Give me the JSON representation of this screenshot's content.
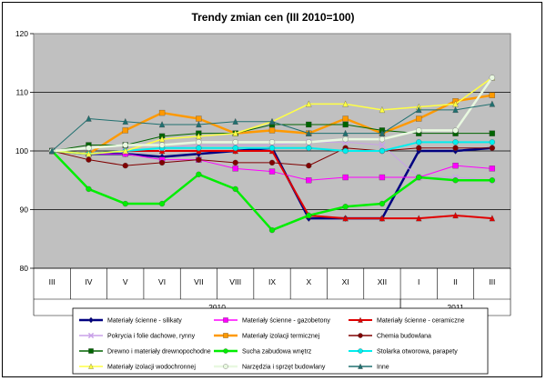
{
  "chart_data": {
    "type": "line",
    "title": "Trendy zmian cen (III 2010=100)",
    "categories": [
      "III",
      "IV",
      "V",
      "VI",
      "VII",
      "VIII",
      "IX",
      "X",
      "XI",
      "XII",
      "I",
      "II",
      "III"
    ],
    "year_groups": [
      {
        "label": "2010",
        "from": 0,
        "to": 9
      },
      {
        "label": "2011",
        "from": 10,
        "to": 12
      }
    ],
    "ylim": [
      80,
      120
    ],
    "yticks": [
      "80",
      "90",
      "100",
      "110",
      "120"
    ],
    "grid": true,
    "legend_position": "bottom",
    "plot_bg": "#c0c0c0",
    "series": [
      {
        "name": "Materiały ścienne - silikaty",
        "color": "#000080",
        "marker": "diamond",
        "width": 2.5,
        "values": [
          100,
          99.5,
          99.5,
          99,
          99.5,
          100,
          100.5,
          88.5,
          88.5,
          88.5,
          100,
          100,
          100.5
        ]
      },
      {
        "name": "Materiały ścienne - gazobetony",
        "color": "#ff00ff",
        "marker": "square",
        "width": 1,
        "values": [
          100,
          99.5,
          99.5,
          98.5,
          98.5,
          97,
          96.5,
          95,
          95.5,
          95.5,
          95.5,
          97.5,
          97
        ]
      },
      {
        "name": "Materiały ścienne - ceramiczne",
        "color": "#e00000",
        "marker": "triangle",
        "width": 2,
        "values": [
          100,
          99.5,
          100,
          100,
          100,
          100,
          100,
          89,
          88.5,
          88.5,
          88.5,
          89,
          88.5
        ]
      },
      {
        "name": "Pokrycia i folie dachowe, rynny",
        "color": "#c8a0e8",
        "marker": "cross",
        "width": 1,
        "values": [
          100,
          99.5,
          100,
          100.5,
          101,
          101,
          101,
          101.5,
          101.5,
          101,
          95.5,
          95.5,
          95
        ]
      },
      {
        "name": "Materiały izolacji termicznej",
        "color": "#ff9900",
        "marker": "square",
        "width": 2.5,
        "values": [
          100,
          99.5,
          103.5,
          106.5,
          105.5,
          103,
          103.5,
          103,
          105.5,
          103,
          105.5,
          108.5,
          109.5
        ]
      },
      {
        "name": "Chemia budowlana",
        "color": "#800000",
        "marker": "circle",
        "width": 1,
        "values": [
          100,
          98.5,
          97.5,
          98,
          98.5,
          98,
          98,
          97.5,
          100.5,
          100,
          100.5,
          100.5,
          100.5
        ]
      },
      {
        "name": "Drewno i materiały drewnopochodne",
        "color": "#006400",
        "marker": "square",
        "width": 1,
        "values": [
          100,
          101,
          101,
          102.5,
          103,
          103,
          104.5,
          104.5,
          104.5,
          103.5,
          103,
          103,
          103
        ]
      },
      {
        "name": "Sucha zabudowa wnętrz",
        "color": "#00ee00",
        "marker": "circle",
        "width": 2.5,
        "values": [
          100,
          93.5,
          91,
          91,
          96,
          93.5,
          86.5,
          89,
          90.5,
          91,
          95.5,
          95,
          95
        ]
      },
      {
        "name": "Stolarka otworowa, parapety",
        "color": "#00eeee",
        "marker": "circle",
        "width": 2,
        "values": [
          100,
          99.5,
          100,
          100.5,
          100.5,
          100.5,
          100.5,
          100.5,
          100,
          100,
          101.5,
          101.5,
          101.5
        ]
      },
      {
        "name": "Materiały izolacji wodochronnej",
        "color": "#ffff44",
        "marker": "triangle",
        "width": 1.5,
        "values": [
          100,
          99.5,
          100,
          102,
          102.5,
          103,
          105,
          108,
          108,
          107,
          107.5,
          108,
          112.5
        ]
      },
      {
        "name": "Narzędzia i sprzęt budowlany",
        "color": "#e8f8e0",
        "marker": "circle",
        "width": 2.5,
        "values": [
          100,
          100.5,
          101,
          101,
          101.5,
          101.5,
          101.5,
          101.5,
          102,
          102,
          103.5,
          103.5,
          112.5
        ]
      },
      {
        "name": "Inne",
        "color": "#207070",
        "marker": "triangle",
        "width": 1,
        "values": [
          100,
          105.5,
          105,
          104.5,
          104.5,
          105,
          105,
          103,
          103,
          103,
          107,
          107,
          108
        ]
      }
    ]
  }
}
